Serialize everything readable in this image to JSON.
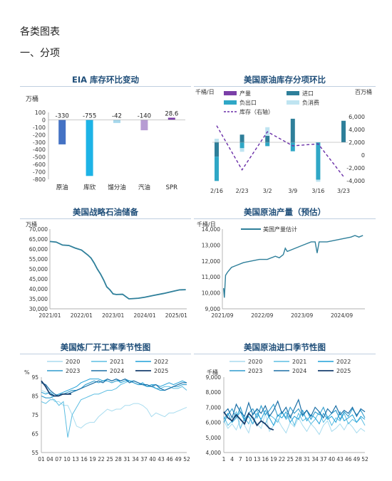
{
  "header": {
    "title": "各类图表",
    "section": "一、分项"
  },
  "colors": {
    "title": "#1f4e79",
    "dark_teal": "#2e7f9a",
    "light_blue_bar": "#9fd3e6",
    "purple": "#7b3fa8",
    "lavender": "#b79cd3",
    "cyan": "#1db3e6",
    "navy": "#4472c4"
  },
  "chart_data": [
    {
      "id": "eia",
      "type": "bar",
      "title": "EIA 库存环比变动",
      "ylabel": "万桶",
      "ylim": [
        -800,
        100
      ],
      "yticks": [
        100,
        0,
        -100,
        -200,
        -300,
        -400,
        -500,
        -600,
        -700,
        -800
      ],
      "categories": [
        "原油",
        "库欣",
        "馏分油",
        "汽油",
        "SPR"
      ],
      "values": [
        -330,
        -755,
        -42,
        -140,
        28.6
      ],
      "data_labels": [
        "-330",
        "-755",
        "-42",
        "-140",
        "28.6"
      ],
      "bar_colors": [
        "#4472c4",
        "#1db3e6",
        "#a6d8ec",
        "#b79cd3",
        "#7b3fa8"
      ]
    },
    {
      "id": "crude_components",
      "type": "bar",
      "title": "美国原油库存分项环比",
      "ylabel": "千桶/日",
      "y2label": "百万桶",
      "ylim": [
        -1500,
        1000
      ],
      "y2lim": [
        -4000,
        6000
      ],
      "y2ticks": [
        6000,
        4000,
        2000,
        0,
        -2000,
        -4000
      ],
      "categories": [
        "2/16",
        "2/23",
        "3/2",
        "3/9",
        "3/16",
        "3/23"
      ],
      "series": [
        {
          "name": "产量",
          "values": [
            0,
            0,
            0,
            0,
            0,
            0
          ]
        },
        {
          "name": "进口",
          "values": [
            -560,
            300,
            250,
            920,
            0,
            840
          ]
        },
        {
          "name": "负出口",
          "values": [
            -950,
            -230,
            -150,
            -350,
            -1460,
            0
          ]
        },
        {
          "name": "负消费",
          "values": [
            140,
            -140,
            340,
            0,
            -80,
            0
          ]
        },
        {
          "name": "库存（右轴）",
          "axis": "right",
          "values": [
            4600,
            -2300,
            3650,
            1450,
            1750,
            -3350
          ]
        }
      ],
      "legend_position": "top"
    },
    {
      "id": "spr",
      "type": "line",
      "title": "美国战略石油储备",
      "ylabel": "万桶",
      "ylim": [
        30000,
        70000
      ],
      "yticks": [
        70000,
        65000,
        60000,
        55000,
        50000,
        45000,
        40000,
        35000,
        30000
      ],
      "xticks": [
        "2021/01",
        "2022/01",
        "2023/01",
        "2024/01",
        "2025/01"
      ],
      "x": [
        2021.0,
        2021.2,
        2021.4,
        2021.6,
        2021.8,
        2022.0,
        2022.2,
        2022.3,
        2022.4,
        2022.5,
        2022.6,
        2022.7,
        2022.8,
        2022.9,
        2023.0,
        2023.1,
        2023.3,
        2023.5,
        2023.6,
        2023.8,
        2024.0,
        2024.3,
        2024.6,
        2024.9,
        2025.1,
        2025.3
      ],
      "values": [
        63800,
        63500,
        62000,
        61800,
        60500,
        59500,
        57000,
        55500,
        53000,
        50000,
        47500,
        44500,
        41000,
        39500,
        37500,
        37200,
        37300,
        35000,
        35100,
        35300,
        35800,
        36800,
        37700,
        38800,
        39500,
        39600
      ]
    },
    {
      "id": "production",
      "type": "line",
      "title": "美国原油产量（预估）",
      "ylabel": "千桶/日",
      "ylim": [
        9000,
        14000
      ],
      "yticks": [
        14000,
        13000,
        12000,
        11000,
        10000,
        9000
      ],
      "xticks": [
        "2021/09",
        "2022/09",
        "2023/09",
        "2024/09"
      ],
      "series": [
        {
          "name": "美国产量估计",
          "x": [
            2021.7,
            2021.72,
            2021.75,
            2021.8,
            2021.9,
            2022.0,
            2022.2,
            2022.4,
            2022.6,
            2022.8,
            2023.0,
            2023.1,
            2023.2,
            2023.25,
            2023.3,
            2023.5,
            2023.7,
            2023.9,
            2024.0,
            2024.05,
            2024.1,
            2024.3,
            2024.5,
            2024.7,
            2024.9,
            2025.0,
            2025.1,
            2025.2
          ],
          "values": [
            10300,
            9700,
            11100,
            11300,
            11600,
            11700,
            11900,
            12000,
            12100,
            12100,
            12300,
            12200,
            12400,
            12800,
            12600,
            12800,
            13000,
            13200,
            13200,
            12500,
            13200,
            13200,
            13300,
            13400,
            13500,
            13600,
            13500,
            13600
          ]
        }
      ],
      "legend_position": "top"
    },
    {
      "id": "refinery_seasonal",
      "type": "line",
      "title": "美国炼厂开工率季节性图",
      "ylabel": "%",
      "ylim": [
        55,
        95
      ],
      "yticks": [
        95,
        85,
        75,
        65,
        55
      ],
      "xticks": [
        "01",
        "04",
        "07",
        "10",
        "13",
        "16",
        "19",
        "22",
        "25",
        "28",
        "31",
        "34",
        "37",
        "40",
        "43",
        "46",
        "49",
        "52"
      ],
      "series": [
        {
          "name": "2020",
          "values": [
            88,
            87,
            86,
            82,
            82,
            80,
            80,
            75,
            69,
            68,
            70,
            71,
            71,
            74,
            76,
            78,
            77,
            78,
            78,
            80,
            80,
            81,
            81,
            80,
            78,
            74,
            76,
            75,
            74,
            76,
            76,
            77,
            78,
            79
          ]
        },
        {
          "name": "2021",
          "values": [
            82,
            81,
            83,
            83,
            80,
            82,
            63,
            75,
            79,
            83,
            84,
            85,
            86,
            86,
            87,
            88,
            88,
            89,
            91,
            92,
            93,
            93,
            92,
            91,
            90,
            91,
            89,
            89,
            90,
            90,
            89,
            89,
            90,
            88
          ]
        },
        {
          "name": "2022",
          "values": [
            87,
            86,
            87,
            85,
            86,
            87,
            88,
            89,
            90,
            92,
            93,
            94,
            94,
            94,
            93,
            94,
            93,
            94,
            92,
            93,
            93,
            92,
            91,
            92,
            90,
            91,
            91,
            90,
            91,
            92,
            91,
            92,
            93,
            92
          ]
        },
        {
          "name": "2023",
          "values": [
            85,
            84,
            84,
            85,
            86,
            86,
            87,
            88,
            88,
            89,
            91,
            92,
            93,
            92,
            93,
            93,
            92,
            93,
            93,
            94,
            93,
            92,
            91,
            91,
            90,
            90,
            89,
            88,
            88,
            89,
            90,
            90,
            91,
            91
          ]
        },
        {
          "name": "2024",
          "values": [
            92,
            91,
            88,
            86,
            85,
            86,
            86,
            87,
            88,
            89,
            90,
            91,
            92,
            93,
            92,
            94,
            93,
            94,
            93,
            94,
            92,
            93,
            92,
            91,
            91,
            90,
            91,
            89,
            88,
            89,
            90,
            91,
            92,
            92
          ]
        },
        {
          "name": "2025",
          "values": [
            93,
            90,
            86,
            85,
            85,
            86,
            86,
            86
          ]
        }
      ],
      "legend_position": "top"
    },
    {
      "id": "import_seasonal",
      "type": "line",
      "title": "美国原油进口季节性图",
      "ylabel": "千桶",
      "ylim": [
        4000,
        9000
      ],
      "yticks": [
        9000,
        8000,
        7000,
        6000,
        5000,
        4000
      ],
      "xticks": [
        "1",
        "4",
        "7",
        "10",
        "13",
        "16",
        "19",
        "22",
        "25",
        "28",
        "31",
        "34",
        "37",
        "40",
        "43",
        "46",
        "49",
        "52"
      ],
      "series": [
        {
          "name": "2020",
          "values": [
            6100,
            5600,
            5900,
            5500,
            6200,
            5800,
            5300,
            6400,
            5900,
            5600,
            6600,
            5400,
            5800,
            6200,
            5700,
            5300,
            6000,
            5700,
            6300,
            5800,
            5400,
            5900,
            5600,
            5200,
            5800,
            6100,
            5400,
            5600,
            5900,
            5500,
            6000,
            5700,
            5300,
            5600,
            5400
          ]
        },
        {
          "name": "2021",
          "values": [
            6400,
            5800,
            6100,
            6700,
            5600,
            6300,
            5900,
            6600,
            6800,
            6100,
            5900,
            6500,
            6300,
            6000,
            6700,
            6200,
            6500,
            5800,
            6600,
            6100,
            6300,
            5900,
            6200,
            6700,
            6000,
            6400,
            5800,
            6300,
            6100,
            6600,
            5900,
            6200,
            6000,
            6300,
            5800
          ]
        },
        {
          "name": "2022",
          "values": [
            6200,
            6600,
            6000,
            6300,
            6700,
            6100,
            6400,
            5900,
            6600,
            6200,
            6800,
            6300,
            5800,
            6500,
            6300,
            6700,
            6000,
            6400,
            6200,
            6800,
            6100,
            6500,
            6300,
            5900,
            6600,
            6200,
            6400,
            6000,
            6700,
            6100,
            6300,
            6500,
            6000,
            6400,
            6200
          ]
        },
        {
          "name": "2023",
          "values": [
            6000,
            6500,
            6900,
            6300,
            7000,
            6200,
            6600,
            6900,
            6300,
            7100,
            6500,
            6800,
            7200,
            6400,
            6700,
            6300,
            7000,
            6600,
            6900,
            6400,
            6800,
            6200,
            6700,
            6500,
            7000,
            6300,
            6600,
            6800,
            6200,
            6700,
            6400,
            6900,
            6500,
            6800,
            6300
          ]
        },
        {
          "name": "2024",
          "values": [
            6600,
            6900,
            6300,
            7200,
            6700,
            6400,
            7300,
            6500,
            6900,
            6600,
            7100,
            6400,
            6800,
            7400,
            6600,
            7000,
            6300,
            6900,
            7500,
            6500,
            6800,
            6400,
            7000,
            6700,
            6300,
            6900,
            6600,
            7100,
            6500,
            6800,
            6600,
            7000,
            6400,
            6900,
            6700
          ]
        },
        {
          "name": "2025",
          "values": [
            6700,
            6300,
            6100,
            6500,
            6200,
            5900,
            6600,
            6300,
            5800,
            6100,
            5900,
            5600,
            5500
          ]
        }
      ],
      "legend_position": "top"
    }
  ]
}
